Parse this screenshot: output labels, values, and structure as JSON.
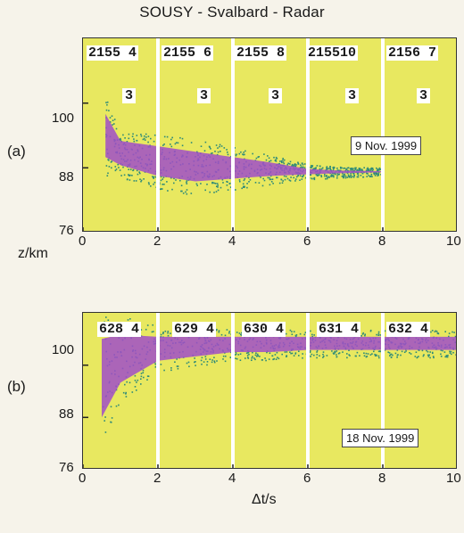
{
  "title": "SOUSY - Svalbard - Radar",
  "colors": {
    "plot_bg": "#e8e860",
    "echo_core": "#a04ec8",
    "echo_edge": "#2e8a78",
    "separator": "#ffffff"
  },
  "chart_data": [
    {
      "panel": "(a)",
      "type": "scatter",
      "title": "SOUSY - Svalbard - Radar",
      "xlabel": "",
      "ylabel": "z/km",
      "xlim": [
        0,
        10
      ],
      "ylim": [
        76,
        112
      ],
      "x_ticks": [
        "0",
        "2",
        "4",
        "6",
        "8",
        "10"
      ],
      "y_ticks": [
        "76",
        "88",
        "100"
      ],
      "y_tick_values": [
        76,
        88,
        100
      ],
      "date": "9 Nov. 1999",
      "run_labels": [
        "2155 4",
        "2155 6",
        "2155 8",
        "215510",
        "2156 7"
      ],
      "codes": [
        "3",
        "3",
        "3",
        "3",
        "3"
      ],
      "separators_x": [
        2.0,
        4.0,
        6.0,
        8.0
      ],
      "echo_layer": {
        "x": [
          0.6,
          1.0,
          2.0,
          3.0,
          4.0,
          5.0,
          6.0,
          6.8,
          8.0
        ],
        "top": [
          98,
          93,
          92,
          91,
          90,
          89,
          87.8,
          87.5,
          87.4
        ],
        "bottom": [
          90,
          88.5,
          86.5,
          85.5,
          86,
          86.5,
          86.8,
          87,
          87.2
        ]
      }
    },
    {
      "panel": "(b)",
      "type": "scatter",
      "xlabel": "Δt/s",
      "ylabel": "",
      "xlim": [
        0,
        10
      ],
      "ylim": [
        76,
        112
      ],
      "x_ticks": [
        "0",
        "2",
        "4",
        "6",
        "8",
        "10"
      ],
      "y_ticks": [
        "76",
        "88",
        "100"
      ],
      "y_tick_values": [
        76,
        88,
        100
      ],
      "date": "18 Nov. 1999",
      "run_labels": [
        "628 4",
        "629 4",
        "630 4",
        "631 4",
        "632 4"
      ],
      "separators_x": [
        2.0,
        4.0,
        6.0,
        8.0
      ],
      "echo_layer": {
        "x": [
          0.5,
          1.0,
          2.0,
          3.0,
          4.0,
          5.0,
          6.0,
          7.0,
          8.0,
          9.0,
          10.0
        ],
        "top": [
          106,
          107,
          106.5,
          106.5,
          106.5,
          106.5,
          106.5,
          106.5,
          106.5,
          106.5,
          106.5
        ],
        "bottom": [
          88,
          96,
          101,
          102,
          103,
          103,
          103.5,
          103.5,
          103.5,
          103.5,
          103.5
        ]
      }
    }
  ]
}
